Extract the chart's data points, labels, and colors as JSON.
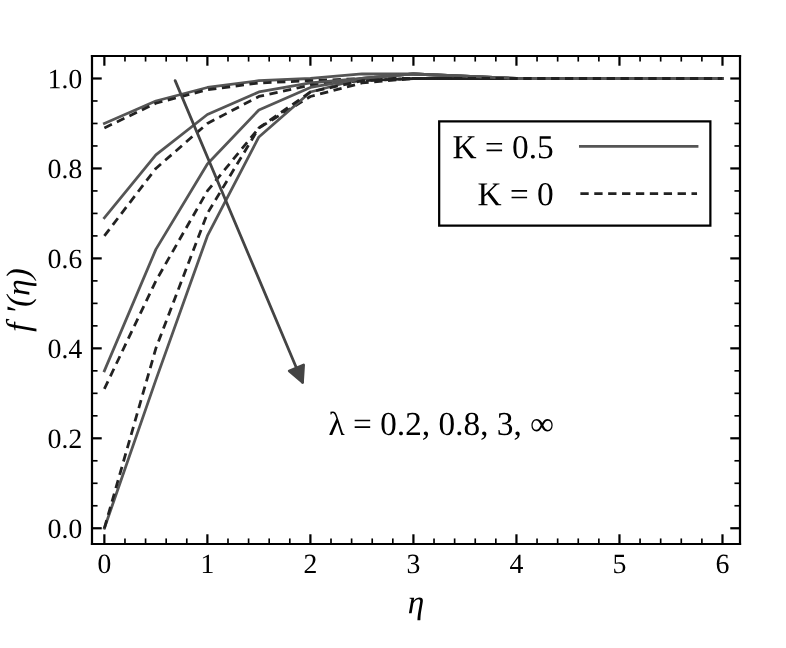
{
  "chart_data": {
    "type": "line",
    "xlabel": "η",
    "ylabel": "f ′(η)",
    "xlim": [
      -0.12,
      6.17
    ],
    "ylim": [
      -0.035,
      1.05
    ],
    "xticks": [
      0,
      1,
      2,
      3,
      4,
      5,
      6
    ],
    "yticks": [
      {
        "value": 0,
        "label": "0.0"
      },
      0.2,
      0.4,
      0.6,
      0.8,
      {
        "value": 1,
        "label": "1.0"
      }
    ],
    "legend": "top right",
    "grid": false,
    "annotations": [
      "λ = 0.2, 0.8, 3, ∞"
    ],
    "series": [
      {
        "name": "K = 0.5",
        "color": "#555555",
        "line_style": "solid",
        "x": [
          0,
          0.5,
          1,
          1.5,
          2,
          2.5,
          3,
          4,
          6
        ],
        "values": [
          0.9,
          0.95,
          0.98,
          0.995,
          1.0,
          1.01,
          1.01,
          1.0,
          1.0
        ]
      },
      {
        "name": "K = 0",
        "color": "#222222",
        "line_style": "dashed",
        "x": [
          0,
          0.5,
          1,
          1.5,
          2,
          2.5,
          3,
          4,
          6
        ],
        "values": [
          0.89,
          0.945,
          0.975,
          0.99,
          0.995,
          1.0,
          1.0,
          1.0,
          1.0
        ]
      },
      {
        "color": "#555555",
        "line_style": "solid",
        "x": [
          0,
          0.5,
          1,
          1.5,
          2,
          2.5,
          3,
          4,
          6
        ],
        "values": [
          0.69,
          0.83,
          0.92,
          0.97,
          0.99,
          1.0,
          1.01,
          1.0,
          1.0
        ]
      },
      {
        "color": "#222222",
        "line_style": "dashed",
        "x": [
          0,
          0.5,
          1,
          1.5,
          2,
          2.5,
          3,
          4,
          6
        ],
        "values": [
          0.65,
          0.8,
          0.9,
          0.96,
          0.985,
          0.995,
          1.0,
          1.0,
          1.0
        ]
      },
      {
        "color": "#555555",
        "line_style": "solid",
        "x": [
          0,
          0.5,
          1,
          1.5,
          2,
          2.5,
          3,
          4,
          6
        ],
        "values": [
          0.35,
          0.62,
          0.81,
          0.93,
          0.98,
          1.0,
          1.01,
          1.0,
          1.0
        ]
      },
      {
        "color": "#222222",
        "line_style": "dashed",
        "x": [
          0,
          0.5,
          1,
          1.5,
          2,
          2.5,
          3,
          4,
          6
        ],
        "values": [
          0.31,
          0.55,
          0.75,
          0.89,
          0.96,
          0.99,
          1.0,
          1.0,
          1.0
        ]
      },
      {
        "color": "#555555",
        "line_style": "solid",
        "x": [
          0,
          0.5,
          1,
          1.5,
          2,
          2.5,
          3,
          4,
          6
        ],
        "values": [
          0.0,
          0.33,
          0.65,
          0.87,
          0.97,
          1.0,
          1.01,
          1.0,
          1.0
        ]
      },
      {
        "color": "#222222",
        "line_style": "dashed",
        "x": [
          0,
          0.5,
          1,
          1.5,
          2,
          2.5,
          3,
          4,
          6
        ],
        "values": [
          0.0,
          0.4,
          0.7,
          0.89,
          0.97,
          0.995,
          1.0,
          1.0,
          1.0
        ]
      }
    ]
  }
}
